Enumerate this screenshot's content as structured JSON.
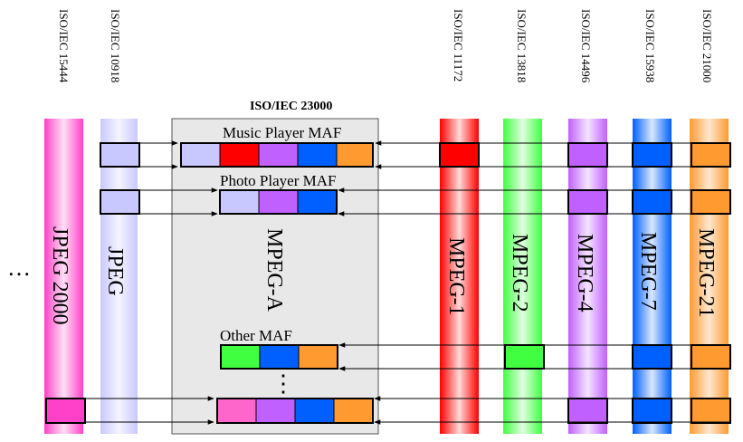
{
  "standards": {
    "iso15444": "ISO/IEC 15444",
    "iso10918": "ISO/IEC 10918",
    "iso11172": "ISO/IEC 11172",
    "iso13818": "ISO/IEC 13818",
    "iso14496": "ISO/IEC 14496",
    "iso15938": "ISO/IEC 15938",
    "iso21000": "ISO/IEC 21000"
  },
  "mpega_standard": "ISO/IEC 23000",
  "columns": {
    "jpeg2000": "JPEG 2000",
    "jpeg": "JPEG",
    "mpega": "MPEG-A",
    "mpeg1": "MPEG-1",
    "mpeg2": "MPEG-2",
    "mpeg4": "MPEG-4",
    "mpeg7": "MPEG-7",
    "mpeg21": "MPEG-21"
  },
  "maf_labels": {
    "music": "Music Player MAF",
    "photo": "Photo Player MAF",
    "other": "Other MAF"
  },
  "ellipsis_left": "…",
  "ellipsis_vertical": "⋮",
  "colors": {
    "jpeg2000": "#ff40c8",
    "jpeg": "#c8c8ff",
    "mpeg1": "#ff0000",
    "mpeg2": "#40ff40",
    "mpeg4": "#c060ff",
    "mpeg7": "#0060ff",
    "mpeg21": "#ff9a30",
    "mpega_box": "#e8e8e8"
  }
}
